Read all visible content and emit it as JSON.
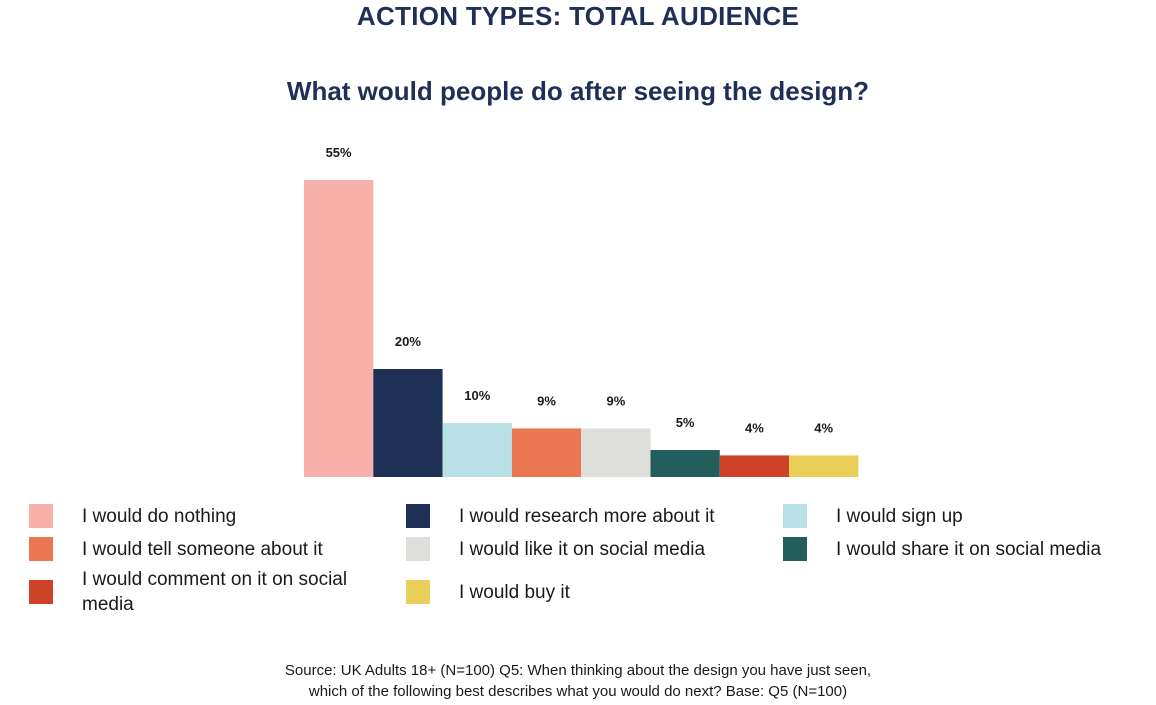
{
  "header": {
    "title": "ACTION TYPES: TOTAL AUDIENCE",
    "subtitle": "What would people do after seeing the design?"
  },
  "chart_data": {
    "type": "bar",
    "categories": [
      "I would do nothing",
      "I would research more about it",
      "I would sign up",
      "I would tell someone about it",
      "I would like it on social media",
      "I would share it on social media",
      "I would comment on it on social media",
      "I would buy it"
    ],
    "values": [
      55,
      20,
      10,
      9,
      9,
      5,
      4,
      4
    ],
    "data_labels": [
      "55%",
      "20%",
      "10%",
      "9%",
      "9%",
      "5%",
      "4%",
      "4%"
    ],
    "colors": [
      "#f7b0aa",
      "#1f3057",
      "#b8e0e6",
      "#ea7750",
      "#dededa",
      "#245e5c",
      "#d04228",
      "#e9cf58"
    ],
    "unit": "%",
    "ylim": [
      0,
      55
    ],
    "grid": false,
    "legend_position": "bottom"
  },
  "source": {
    "line1": "Source: UK Adults 18+ (N=100) Q5: When thinking about the design you have just seen,",
    "line2": "which of the following best describes what you would do next? Base: Q5 (N=100)"
  }
}
